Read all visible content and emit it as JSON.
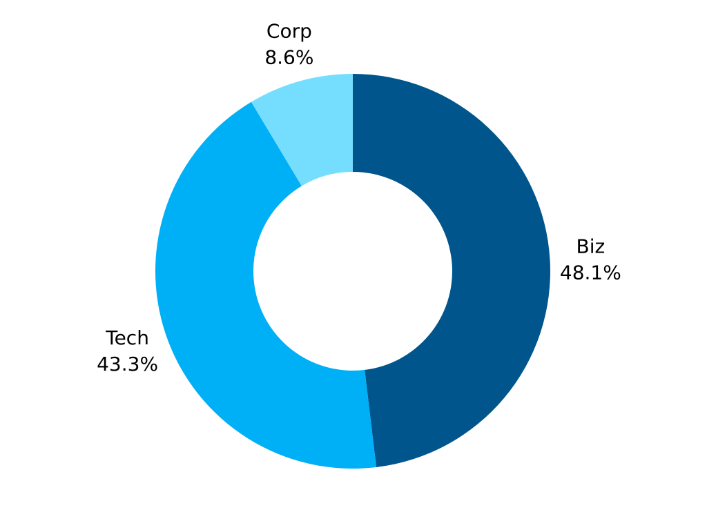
{
  "chart_data": {
    "type": "pie",
    "donut": true,
    "categories": [
      "Biz",
      "Tech",
      "Corp"
    ],
    "values": [
      48.1,
      43.3,
      8.6
    ],
    "value_labels": [
      "48.1%",
      "43.3%",
      "8.6%"
    ],
    "colors": [
      "#00558C",
      "#00B0F6",
      "#75DEFF"
    ],
    "start": "12 o'clock",
    "direction": "clockwise",
    "title": "",
    "legend": "none"
  }
}
